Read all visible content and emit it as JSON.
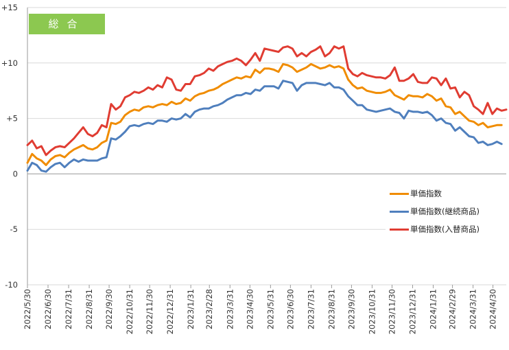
{
  "badge_label": "総合",
  "chart_data": {
    "type": "line",
    "title": "",
    "xlabel": "",
    "ylabel": "",
    "ylim": [
      -10,
      15
    ],
    "yticks": [
      {
        "value": 15,
        "label": "+15"
      },
      {
        "value": 10,
        "label": "+10"
      },
      {
        "value": 5,
        "label": "+5"
      },
      {
        "value": 0,
        "label": "0"
      },
      {
        "value": -5,
        "label": "-5"
      },
      {
        "value": -10,
        "label": "-10"
      }
    ],
    "grid": true,
    "legend_position": "right",
    "x_tick_labels": [
      "2022/5/30",
      "2022/6/30",
      "2022/7/31",
      "2022/8/31",
      "2022/9/30",
      "2022/10/31",
      "2022/11/30",
      "2022/12/31",
      "2023/1/31",
      "2023/2/28",
      "2023/3/31",
      "2023/4/30",
      "2023/5/31",
      "2023/6/30",
      "2023/7/31",
      "2023/8/31",
      "2023/9/30",
      "2023/10/31",
      "2023/11/30",
      "2023/12/31",
      "2024/1/31",
      "2024/2/29",
      "2024/3/31",
      "2024/4/30"
    ],
    "x_tick_weeks": [
      0,
      4.43,
      8.86,
      13.29,
      17.57,
      22,
      26.29,
      30.71,
      35.14,
      39.14,
      43.57,
      47.86,
      52.29,
      56.57,
      61,
      65.43,
      69.71,
      74.14,
      78.43,
      82.86,
      87.29,
      91.43,
      95.86,
      100.14
    ],
    "weeks": 103,
    "series": [
      {
        "name": "単価指数",
        "color": "#f08c00",
        "values": [
          1.0,
          1.8,
          1.4,
          1.2,
          0.8,
          1.3,
          1.6,
          1.7,
          1.5,
          1.9,
          2.2,
          2.4,
          2.6,
          2.3,
          2.2,
          2.4,
          2.8,
          3.0,
          4.6,
          4.5,
          4.7,
          5.3,
          5.6,
          5.8,
          5.7,
          6.0,
          6.1,
          6.0,
          6.2,
          6.3,
          6.2,
          6.5,
          6.3,
          6.4,
          6.8,
          6.6,
          7.0,
          7.2,
          7.3,
          7.5,
          7.6,
          7.8,
          8.1,
          8.3,
          8.5,
          8.7,
          8.6,
          8.8,
          8.7,
          9.4,
          9.1,
          9.5,
          9.5,
          9.4,
          9.2,
          9.9,
          9.8,
          9.6,
          9.2,
          9.4,
          9.6,
          9.9,
          9.7,
          9.5,
          9.6,
          9.8,
          9.6,
          9.7,
          9.5,
          8.5,
          8.0,
          7.7,
          7.8,
          7.5,
          7.4,
          7.3,
          7.3,
          7.4,
          7.6,
          7.1,
          6.9,
          6.7,
          7.1,
          7.0,
          7.0,
          6.9,
          7.2,
          7.0,
          6.6,
          6.8,
          6.1,
          6.0,
          5.4,
          5.6,
          5.2,
          4.8,
          4.7,
          4.4,
          4.6,
          4.2,
          4.3,
          4.4,
          4.4
        ]
      },
      {
        "name": "単価指数(継続商品)",
        "color": "#4f7fbd",
        "values": [
          0.3,
          1.0,
          0.8,
          0.3,
          0.2,
          0.6,
          0.9,
          1.0,
          0.6,
          1.0,
          1.3,
          1.1,
          1.3,
          1.2,
          1.2,
          1.2,
          1.4,
          1.5,
          3.2,
          3.1,
          3.4,
          3.8,
          4.3,
          4.4,
          4.3,
          4.5,
          4.6,
          4.5,
          4.8,
          4.8,
          4.7,
          5.0,
          4.9,
          5.0,
          5.4,
          5.1,
          5.6,
          5.8,
          5.9,
          5.9,
          6.1,
          6.2,
          6.4,
          6.7,
          6.9,
          7.1,
          7.1,
          7.3,
          7.2,
          7.6,
          7.5,
          7.9,
          7.9,
          7.9,
          7.7,
          8.4,
          8.3,
          8.2,
          7.5,
          8.0,
          8.2,
          8.2,
          8.2,
          8.1,
          8.0,
          8.2,
          7.8,
          7.8,
          7.6,
          7.0,
          6.6,
          6.2,
          6.2,
          5.8,
          5.7,
          5.6,
          5.7,
          5.8,
          5.9,
          5.6,
          5.5,
          5.0,
          5.7,
          5.6,
          5.6,
          5.5,
          5.6,
          5.3,
          4.8,
          5.0,
          4.6,
          4.5,
          3.9,
          4.2,
          3.8,
          3.4,
          3.3,
          2.8,
          2.9,
          2.6,
          2.7,
          2.9,
          2.7
        ]
      },
      {
        "name": "単価指数(入替商品)",
        "color": "#e03c32",
        "values": [
          2.6,
          3.0,
          2.3,
          2.5,
          1.7,
          2.1,
          2.4,
          2.5,
          2.4,
          2.8,
          3.2,
          3.7,
          4.2,
          3.6,
          3.4,
          3.7,
          4.4,
          4.2,
          6.3,
          5.8,
          6.1,
          6.9,
          7.1,
          7.4,
          7.3,
          7.5,
          7.8,
          7.6,
          8.0,
          7.8,
          8.7,
          8.5,
          7.6,
          7.5,
          8.1,
          8.1,
          8.8,
          8.9,
          9.1,
          9.5,
          9.3,
          9.7,
          9.9,
          10.1,
          10.2,
          10.4,
          10.2,
          9.8,
          10.3,
          10.9,
          10.2,
          11.3,
          11.2,
          11.1,
          11.0,
          11.4,
          11.5,
          11.3,
          10.6,
          10.9,
          10.6,
          11.0,
          11.2,
          11.5,
          10.6,
          10.9,
          11.5,
          11.3,
          11.5,
          9.5,
          9.0,
          8.8,
          9.1,
          8.9,
          8.8,
          8.7,
          8.7,
          8.6,
          8.9,
          9.6,
          8.4,
          8.4,
          8.6,
          9.0,
          8.3,
          8.2,
          8.2,
          8.7,
          8.6,
          8.0,
          8.6,
          7.7,
          7.8,
          6.9,
          7.4,
          7.1,
          6.1,
          5.8,
          5.4,
          6.4,
          5.4,
          5.9,
          5.7,
          5.8
        ]
      }
    ]
  }
}
